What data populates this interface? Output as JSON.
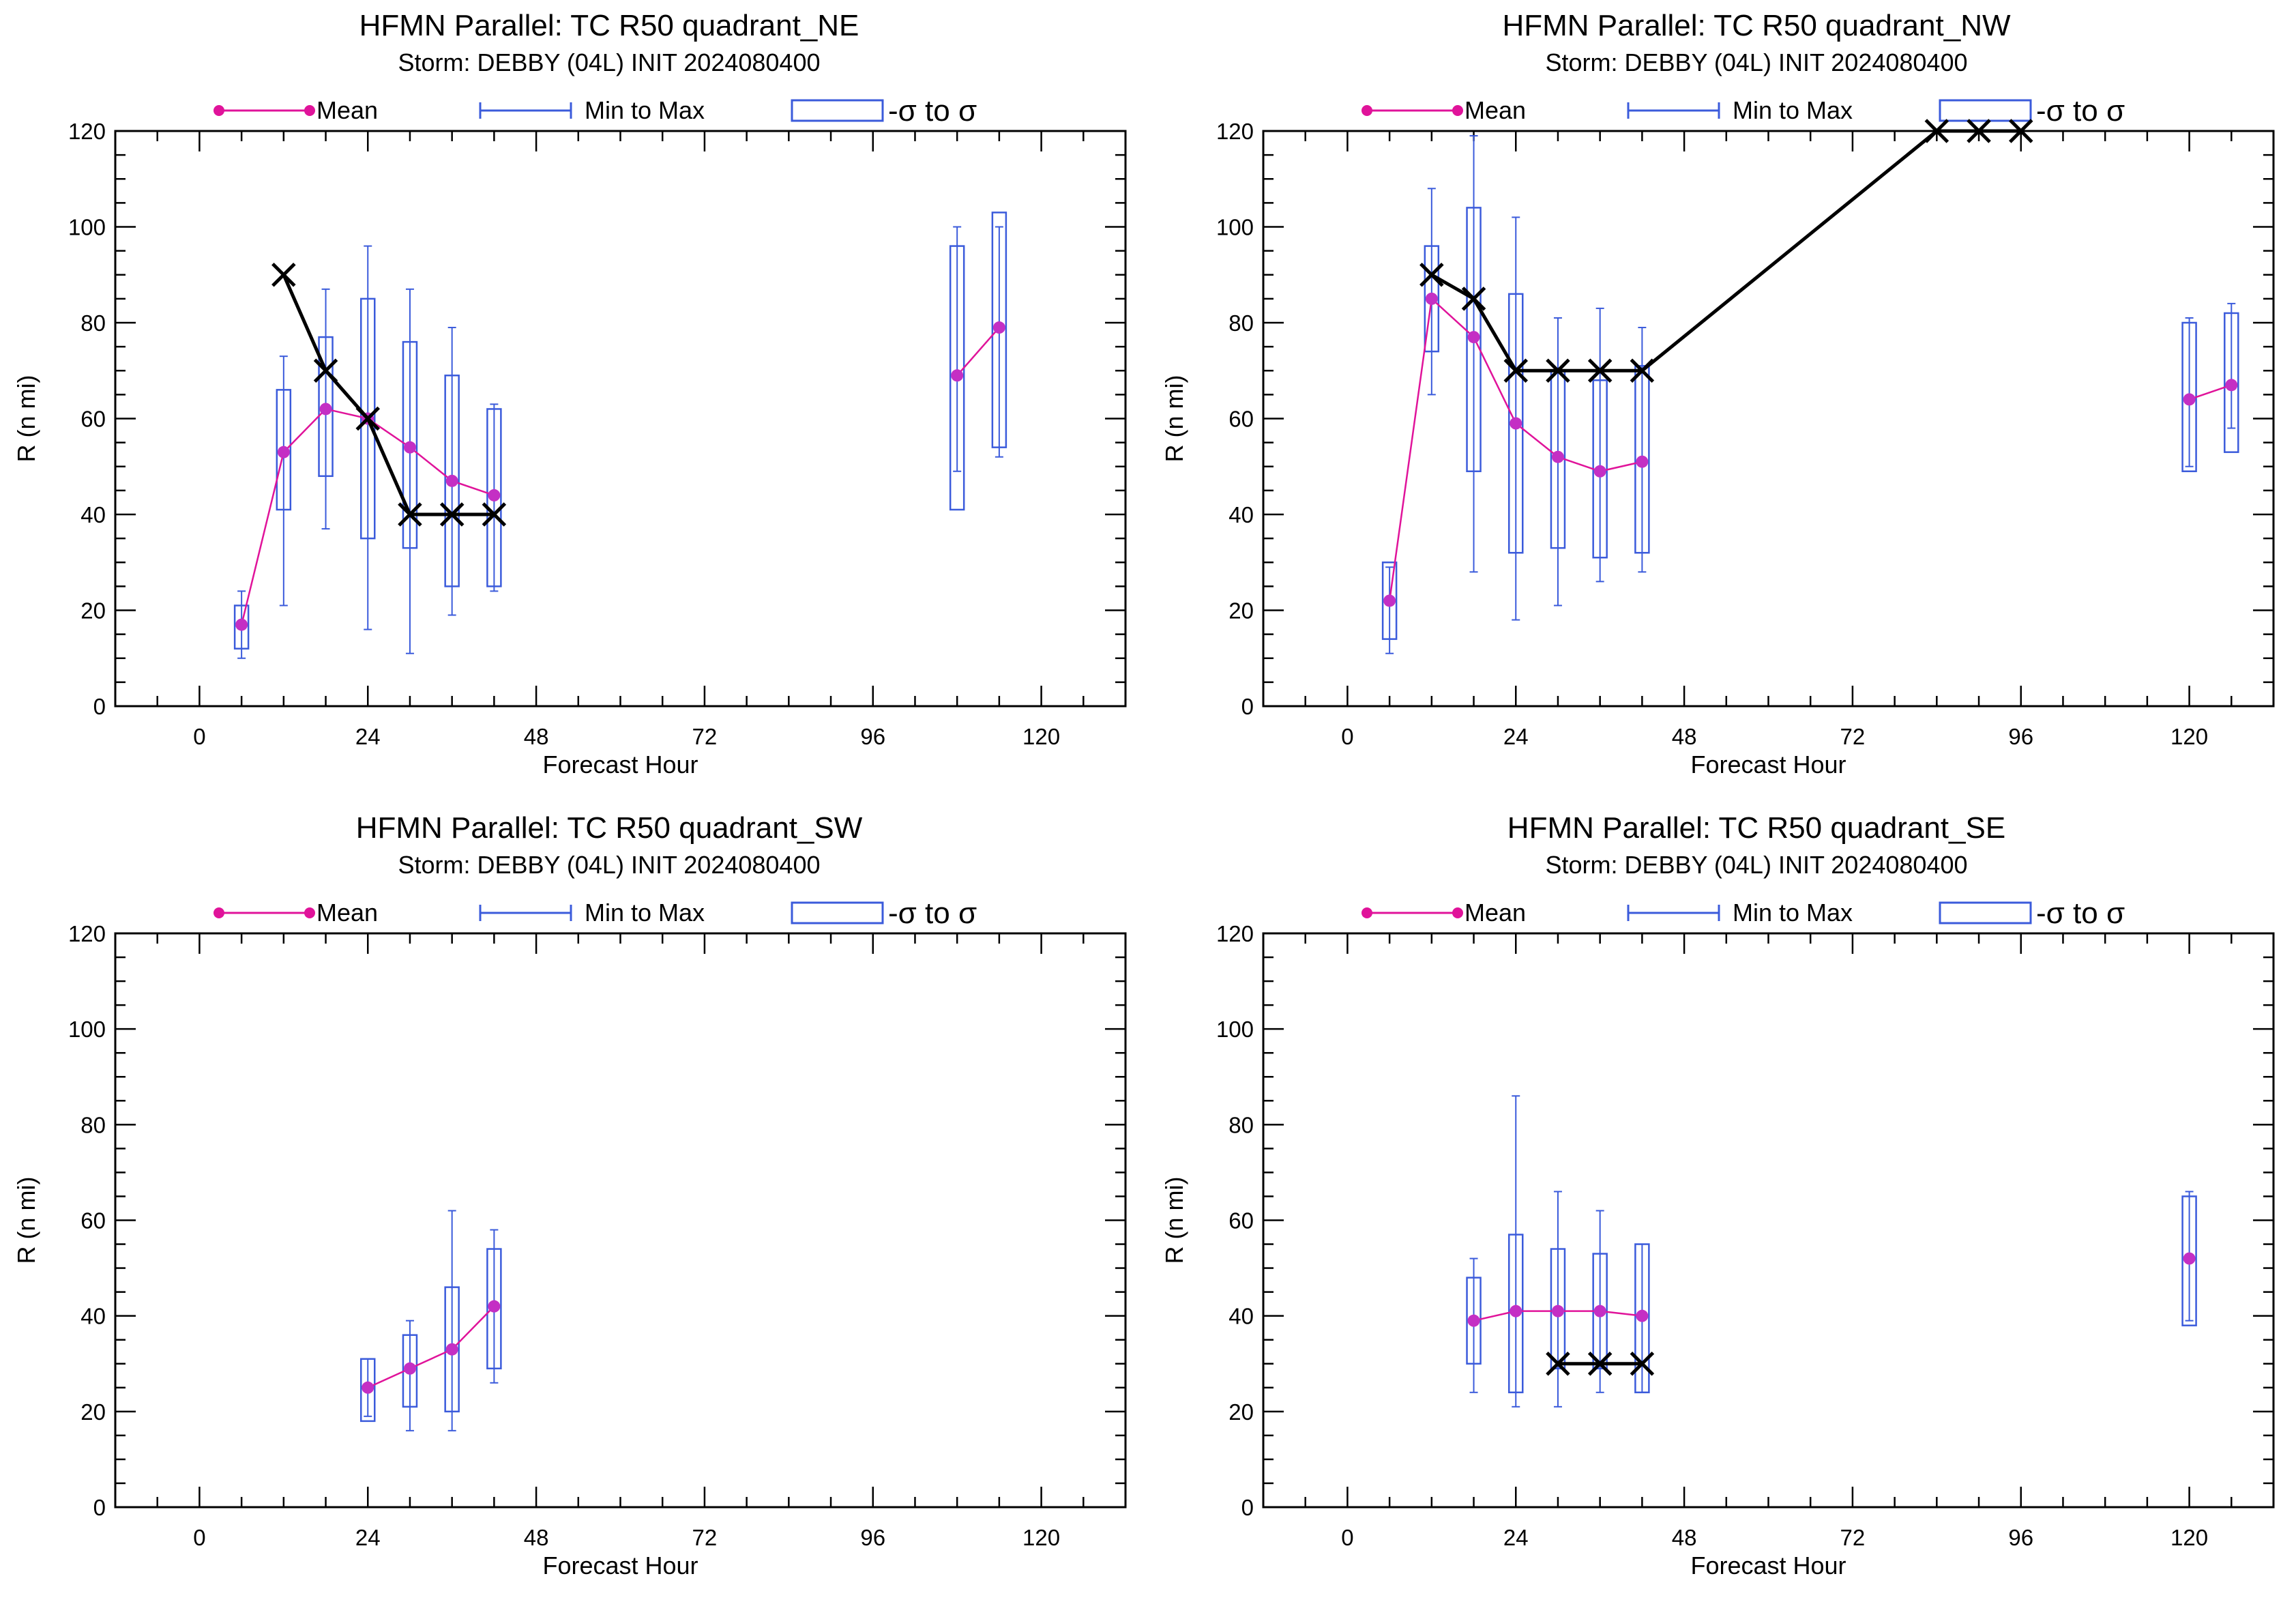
{
  "colors": {
    "mean": "#e0139a",
    "mean_marker": "#c42fc4",
    "range": "#3b5bdb",
    "best_track": "#000000",
    "axes": "#000000"
  },
  "legend": {
    "mean": "Mean",
    "range": "Min to Max",
    "sigma": "-σ to σ"
  },
  "chart_data": [
    {
      "type": "box",
      "title": "HFMN Parallel: TC  R50 quadrant_NE",
      "subtitle": "Storm: DEBBY (04L) INIT 2024080400",
      "xlabel": "Forecast Hour",
      "ylabel": "R (n mi)",
      "xlim": [
        -12,
        132
      ],
      "ylim": [
        0,
        120
      ],
      "xticks": [
        0,
        24,
        48,
        72,
        96,
        120
      ],
      "yticks": [
        0,
        20,
        40,
        60,
        80,
        100,
        120
      ],
      "ensemble": [
        {
          "hour": 6,
          "mean": 17,
          "min": 10,
          "max": 24,
          "sd_low": 12,
          "sd_high": 21
        },
        {
          "hour": 12,
          "mean": 53,
          "min": 21,
          "max": 73,
          "sd_low": 41,
          "sd_high": 66
        },
        {
          "hour": 18,
          "mean": 62,
          "min": 37,
          "max": 87,
          "sd_low": 48,
          "sd_high": 77
        },
        {
          "hour": 24,
          "mean": 60,
          "min": 16,
          "max": 96,
          "sd_low": 35,
          "sd_high": 85
        },
        {
          "hour": 30,
          "mean": 54,
          "min": 11,
          "max": 87,
          "sd_low": 33,
          "sd_high": 76
        },
        {
          "hour": 36,
          "mean": 47,
          "min": 19,
          "max": 79,
          "sd_low": 25,
          "sd_high": 69
        },
        {
          "hour": 42,
          "mean": 44,
          "min": 24,
          "max": 63,
          "sd_low": 25,
          "sd_high": 62
        },
        {
          "hour": 108,
          "mean": 69,
          "min": 49,
          "max": 100,
          "sd_low": 41,
          "sd_high": 96
        },
        {
          "hour": 114,
          "mean": 79,
          "min": 52,
          "max": 100,
          "sd_low": 54,
          "sd_high": 103
        }
      ],
      "mean_segments": [
        [
          6,
          12,
          18,
          24,
          30,
          36,
          42
        ],
        [
          108,
          114
        ]
      ],
      "best_track": [
        {
          "hour": 12,
          "value": 90
        },
        {
          "hour": 18,
          "value": 70
        },
        {
          "hour": 24,
          "value": 60
        },
        {
          "hour": 30,
          "value": 40
        },
        {
          "hour": 36,
          "value": 40
        },
        {
          "hour": 42,
          "value": 40
        }
      ]
    },
    {
      "type": "box",
      "title": "HFMN Parallel: TC  R50 quadrant_NW",
      "subtitle": "Storm: DEBBY (04L) INIT 2024080400",
      "xlabel": "Forecast Hour",
      "ylabel": "R (n mi)",
      "xlim": [
        -12,
        132
      ],
      "ylim": [
        0,
        120
      ],
      "xticks": [
        0,
        24,
        48,
        72,
        96,
        120
      ],
      "yticks": [
        0,
        20,
        40,
        60,
        80,
        100,
        120
      ],
      "ensemble": [
        {
          "hour": 6,
          "mean": 22,
          "min": 11,
          "max": 29,
          "sd_low": 14,
          "sd_high": 30
        },
        {
          "hour": 12,
          "mean": 85,
          "min": 65,
          "max": 108,
          "sd_low": 74,
          "sd_high": 96
        },
        {
          "hour": 18,
          "mean": 77,
          "min": 28,
          "max": 119,
          "sd_low": 49,
          "sd_high": 104
        },
        {
          "hour": 24,
          "mean": 59,
          "min": 18,
          "max": 102,
          "sd_low": 32,
          "sd_high": 86
        },
        {
          "hour": 30,
          "mean": 52,
          "min": 21,
          "max": 81,
          "sd_low": 33,
          "sd_high": 70
        },
        {
          "hour": 36,
          "mean": 49,
          "min": 26,
          "max": 83,
          "sd_low": 31,
          "sd_high": 68
        },
        {
          "hour": 42,
          "mean": 51,
          "min": 28,
          "max": 79,
          "sd_low": 32,
          "sd_high": 71
        },
        {
          "hour": 120,
          "mean": 64,
          "min": 50,
          "max": 81,
          "sd_low": 49,
          "sd_high": 80
        },
        {
          "hour": 126,
          "mean": 67,
          "min": 58,
          "max": 84,
          "sd_low": 53,
          "sd_high": 82
        }
      ],
      "mean_segments": [
        [
          6,
          12,
          18,
          24,
          30,
          36,
          42
        ],
        [
          120,
          126
        ]
      ],
      "best_track": [
        {
          "hour": 12,
          "value": 90
        },
        {
          "hour": 18,
          "value": 85
        },
        {
          "hour": 24,
          "value": 70
        },
        {
          "hour": 30,
          "value": 70
        },
        {
          "hour": 36,
          "value": 70
        },
        {
          "hour": 42,
          "value": 70
        },
        {
          "hour": 84,
          "value": 120
        },
        {
          "hour": 90,
          "value": 120
        },
        {
          "hour": 96,
          "value": 120
        }
      ]
    },
    {
      "type": "box",
      "title": "HFMN Parallel: TC  R50 quadrant_SW",
      "subtitle": "Storm: DEBBY (04L) INIT 2024080400",
      "xlabel": "Forecast Hour",
      "ylabel": "R (n mi)",
      "xlim": [
        -12,
        132
      ],
      "ylim": [
        0,
        120
      ],
      "xticks": [
        0,
        24,
        48,
        72,
        96,
        120
      ],
      "yticks": [
        0,
        20,
        40,
        60,
        80,
        100,
        120
      ],
      "ensemble": [
        {
          "hour": 24,
          "mean": 25,
          "min": 19,
          "max": 31,
          "sd_low": 18,
          "sd_high": 31
        },
        {
          "hour": 30,
          "mean": 29,
          "min": 16,
          "max": 39,
          "sd_low": 21,
          "sd_high": 36
        },
        {
          "hour": 36,
          "mean": 33,
          "min": 16,
          "max": 62,
          "sd_low": 20,
          "sd_high": 46
        },
        {
          "hour": 42,
          "mean": 42,
          "min": 26,
          "max": 58,
          "sd_low": 29,
          "sd_high": 54
        }
      ],
      "mean_segments": [
        [
          24,
          30,
          36,
          42
        ]
      ],
      "best_track": []
    },
    {
      "type": "box",
      "title": "HFMN Parallel: TC  R50 quadrant_SE",
      "subtitle": "Storm: DEBBY (04L) INIT 2024080400",
      "xlabel": "Forecast Hour",
      "ylabel": "R (n mi)",
      "xlim": [
        -12,
        132
      ],
      "ylim": [
        0,
        120
      ],
      "xticks": [
        0,
        24,
        48,
        72,
        96,
        120
      ],
      "yticks": [
        0,
        20,
        40,
        60,
        80,
        100,
        120
      ],
      "ensemble": [
        {
          "hour": 18,
          "mean": 39,
          "min": 24,
          "max": 52,
          "sd_low": 30,
          "sd_high": 48
        },
        {
          "hour": 24,
          "mean": 41,
          "min": 21,
          "max": 86,
          "sd_low": 24,
          "sd_high": 57
        },
        {
          "hour": 30,
          "mean": 41,
          "min": 21,
          "max": 66,
          "sd_low": 29,
          "sd_high": 54
        },
        {
          "hour": 36,
          "mean": 41,
          "min": 24,
          "max": 62,
          "sd_low": 29,
          "sd_high": 53
        },
        {
          "hour": 42,
          "mean": 40,
          "min": 24,
          "max": 55,
          "sd_low": 24,
          "sd_high": 55
        },
        {
          "hour": 120,
          "mean": 52,
          "min": 39,
          "max": 66,
          "sd_low": 38,
          "sd_high": 65
        }
      ],
      "mean_segments": [
        [
          18,
          24,
          30,
          36,
          42
        ],
        [
          120
        ]
      ],
      "best_track": [
        {
          "hour": 30,
          "value": 30
        },
        {
          "hour": 36,
          "value": 30
        },
        {
          "hour": 42,
          "value": 30
        }
      ]
    }
  ]
}
